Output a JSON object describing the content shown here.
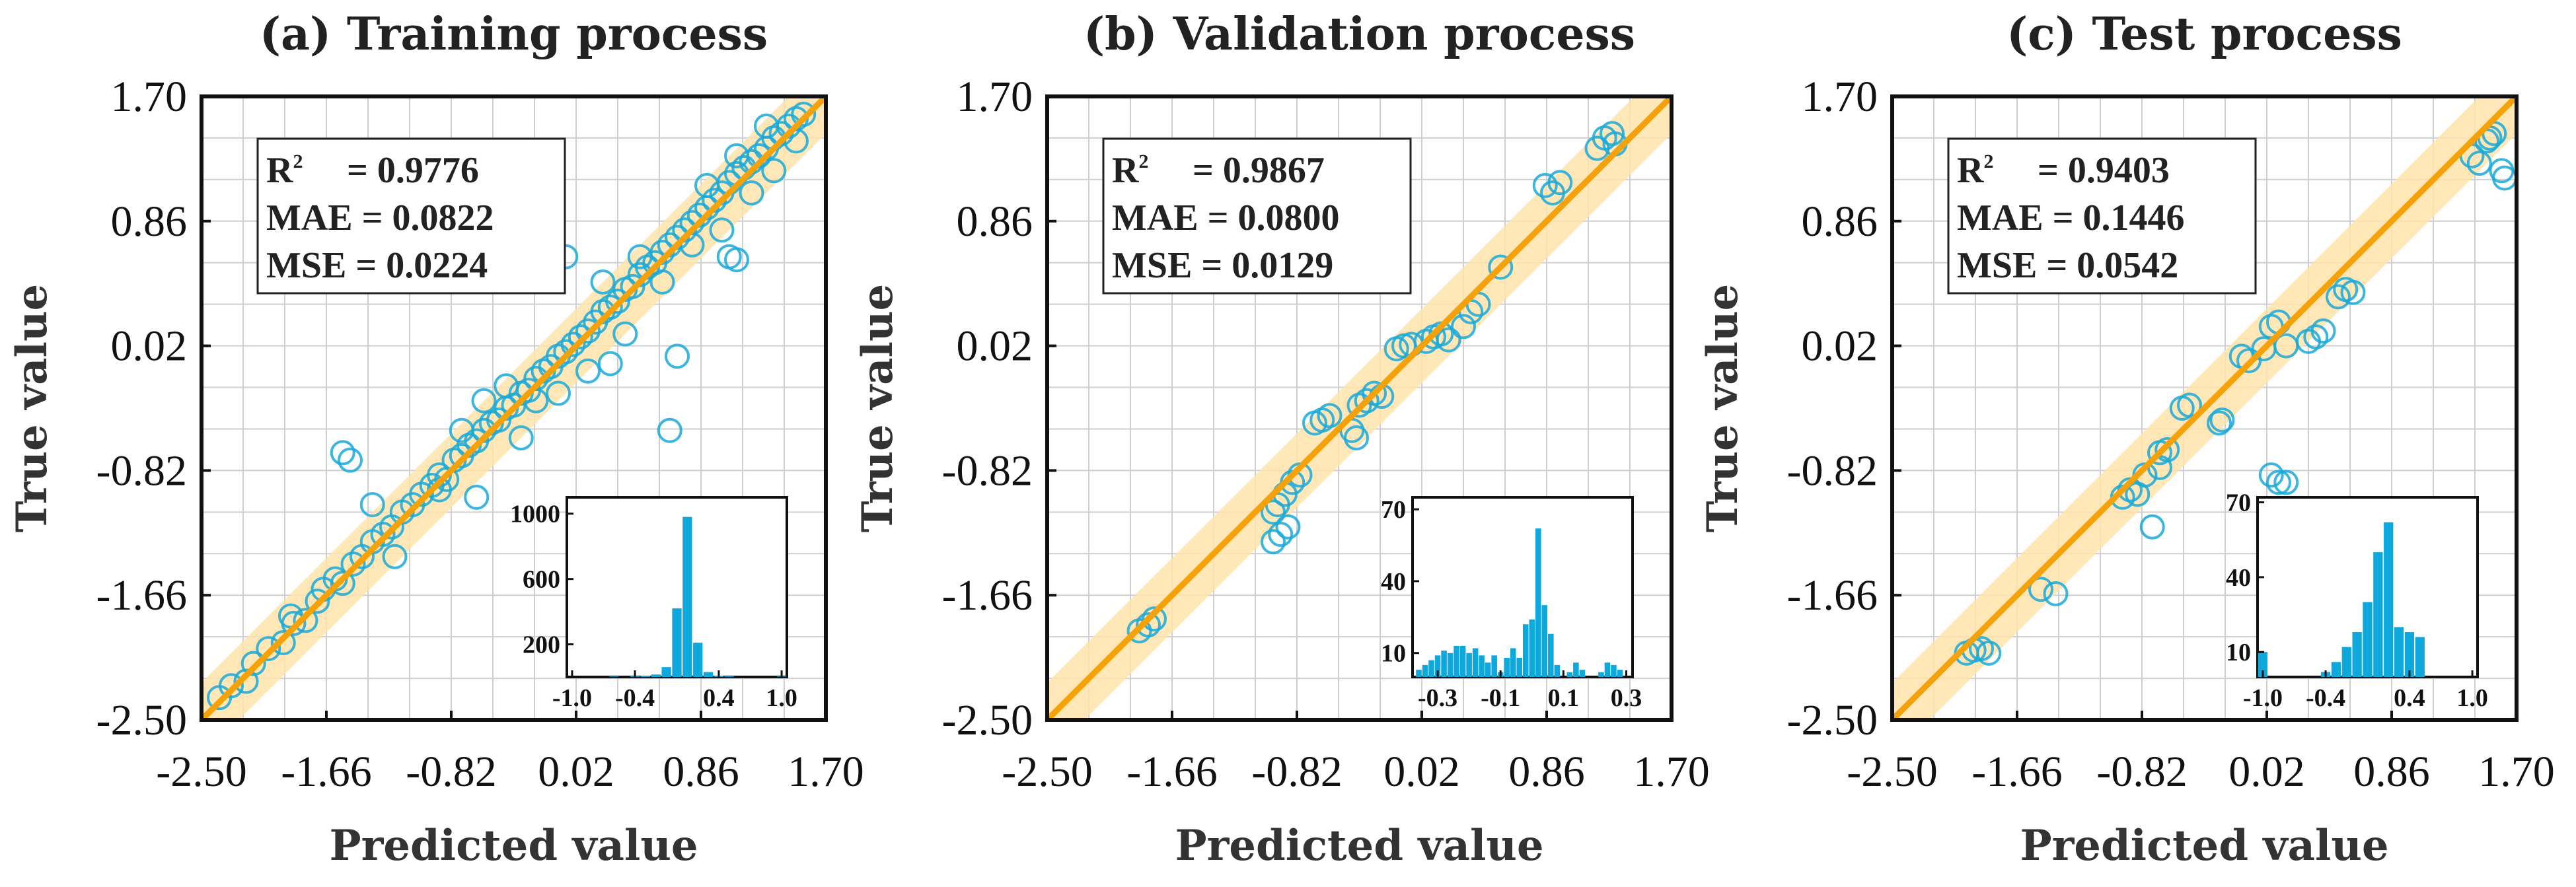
{
  "figure": {
    "accent": "#f5a10a",
    "band": "#ffe3ab",
    "point_color": "#1aa9d8",
    "bar_color": "#0fa8dc"
  },
  "chart_data": [
    {
      "type": "scatter",
      "title": "(a) Training process",
      "xlabel": "Predicted value",
      "ylabel": "True value",
      "xlim": [
        -2.5,
        1.7
      ],
      "ylim": [
        -2.5,
        1.7
      ],
      "ticks": [
        -2.5,
        -1.66,
        -0.82,
        0.02,
        0.86,
        1.7
      ],
      "tick_labels": [
        "-2.50",
        "-1.66",
        "-0.82",
        "0.02",
        "0.86",
        "1.70"
      ],
      "fit_line": [
        [
          -2.5,
          -2.5
        ],
        [
          1.7,
          1.7
        ]
      ],
      "band_halfwidth": 0.25,
      "stats": {
        "r2_label": "R",
        "r2_sup": "2",
        "r2_value": "= 0.9776",
        "mae": "MAE = 0.0822",
        "mse": "MSE = 0.0224"
      },
      "points": [
        [
          -2.38,
          -2.35
        ],
        [
          -2.3,
          -2.27
        ],
        [
          -2.2,
          -2.24
        ],
        [
          -2.15,
          -2.12
        ],
        [
          -2.05,
          -2.02
        ],
        [
          -1.95,
          -1.98
        ],
        [
          -1.88,
          -1.85
        ],
        [
          -1.8,
          -1.83
        ],
        [
          -1.72,
          -1.7
        ],
        [
          -1.68,
          -1.62
        ],
        [
          -1.6,
          -1.55
        ],
        [
          -1.55,
          -1.58
        ],
        [
          -1.48,
          -1.45
        ],
        [
          -1.42,
          -1.4
        ],
        [
          -1.35,
          -1.3
        ],
        [
          -1.28,
          -1.25
        ],
        [
          -1.22,
          -1.2
        ],
        [
          -1.15,
          -1.1
        ],
        [
          -1.08,
          -1.05
        ],
        [
          -1.02,
          -0.98
        ],
        [
          -0.95,
          -0.92
        ],
        [
          -0.9,
          -0.85
        ],
        [
          -0.85,
          -0.88
        ],
        [
          -0.8,
          -0.75
        ],
        [
          -0.75,
          -0.72
        ],
        [
          -0.7,
          -0.65
        ],
        [
          -0.65,
          -0.62
        ],
        [
          -0.6,
          -0.55
        ],
        [
          -0.55,
          -0.5
        ],
        [
          -0.5,
          -0.48
        ],
        [
          -0.45,
          -0.4
        ],
        [
          -0.4,
          -0.38
        ],
        [
          -0.35,
          -0.3
        ],
        [
          -0.3,
          -0.28
        ],
        [
          -0.25,
          -0.2
        ],
        [
          -0.2,
          -0.15
        ],
        [
          -0.15,
          -0.12
        ],
        [
          -0.1,
          -0.05
        ],
        [
          -0.05,
          -0.02
        ],
        [
          0.0,
          0.03
        ],
        [
          0.05,
          0.08
        ],
        [
          0.1,
          0.12
        ],
        [
          0.15,
          0.18
        ],
        [
          0.2,
          0.25
        ],
        [
          0.25,
          0.28
        ],
        [
          0.3,
          0.32
        ],
        [
          0.35,
          0.4
        ],
        [
          0.4,
          0.42
        ],
        [
          0.45,
          0.5
        ],
        [
          0.5,
          0.55
        ],
        [
          0.55,
          0.58
        ],
        [
          0.6,
          0.65
        ],
        [
          0.65,
          0.7
        ],
        [
          0.7,
          0.75
        ],
        [
          0.75,
          0.8
        ],
        [
          0.8,
          0.85
        ],
        [
          0.85,
          0.9
        ],
        [
          0.9,
          0.95
        ],
        [
          0.95,
          1.0
        ],
        [
          1.0,
          1.05
        ],
        [
          1.05,
          1.12
        ],
        [
          1.1,
          1.18
        ],
        [
          1.15,
          1.22
        ],
        [
          1.2,
          1.26
        ],
        [
          1.25,
          1.3
        ],
        [
          1.3,
          1.35
        ],
        [
          1.35,
          1.42
        ],
        [
          1.4,
          1.45
        ],
        [
          1.45,
          1.5
        ],
        [
          1.5,
          1.55
        ],
        [
          1.55,
          1.58
        ],
        [
          -1.9,
          -1.8
        ],
        [
          -1.2,
          -1.4
        ],
        [
          -0.75,
          -0.55
        ],
        [
          -0.6,
          -0.35
        ],
        [
          -0.45,
          -0.25
        ],
        [
          -0.25,
          -0.35
        ],
        [
          0.1,
          -0.15
        ],
        [
          0.2,
          0.45
        ],
        [
          0.35,
          0.1
        ],
        [
          0.45,
          0.62
        ],
        [
          0.6,
          0.45
        ],
        [
          0.7,
          -0.05
        ],
        [
          0.8,
          0.7
        ],
        [
          0.9,
          1.1
        ],
        [
          1.0,
          0.8
        ],
        [
          1.1,
          1.3
        ],
        [
          1.2,
          1.05
        ],
        [
          1.3,
          1.5
        ],
        [
          1.35,
          1.2
        ],
        [
          1.5,
          1.4
        ],
        [
          -1.55,
          -0.7
        ],
        [
          -1.5,
          -0.75
        ],
        [
          -0.05,
          0.62
        ],
        [
          0.65,
          -0.55
        ],
        [
          1.05,
          0.62
        ],
        [
          1.1,
          0.6
        ],
        [
          -1.35,
          -1.05
        ],
        [
          -0.65,
          -1.0
        ],
        [
          0.25,
          -0.1
        ],
        [
          -0.9,
          -0.95
        ],
        [
          -0.1,
          -0.3
        ],
        [
          -0.35,
          -0.6
        ]
      ],
      "inset": {
        "type": "bar",
        "bins": [
          -1.0,
          -0.9,
          -0.8,
          -0.7,
          -0.6,
          -0.5,
          -0.4,
          -0.3,
          -0.2,
          -0.1,
          0.0,
          0.1,
          0.2,
          0.3,
          0.4,
          0.5,
          0.6,
          0.7,
          0.8,
          0.9,
          1.0
        ],
        "values": [
          0,
          0,
          0,
          0,
          3,
          0,
          5,
          8,
          15,
          60,
          420,
          980,
          210,
          30,
          8,
          4,
          0,
          0,
          0,
          0,
          3
        ],
        "ylim": [
          0,
          1100
        ],
        "ytick_labels": [
          "200",
          "600",
          "1000"
        ],
        "yticks": [
          200,
          600,
          1000
        ],
        "xticks": [
          -1.0,
          -0.4,
          0.4,
          1.0
        ],
        "xtick_labels": [
          "-1.0",
          "-0.4",
          "0.4",
          "1.0"
        ],
        "xlim": [
          -1.05,
          1.05
        ]
      }
    },
    {
      "type": "scatter",
      "title": "(b) Validation process",
      "xlabel": "Predicted value",
      "ylabel": "True value",
      "xlim": [
        -2.5,
        1.7
      ],
      "ylim": [
        -2.5,
        1.7
      ],
      "ticks": [
        -2.5,
        -1.66,
        -0.82,
        0.02,
        0.86,
        1.7
      ],
      "tick_labels": [
        "-2.50",
        "-1.66",
        "-0.82",
        "0.02",
        "0.86",
        "1.70"
      ],
      "fit_line": [
        [
          -2.5,
          -2.5
        ],
        [
          1.7,
          1.7
        ]
      ],
      "band_halfwidth": 0.25,
      "stats": {
        "r2_label": "R",
        "r2_sup": "2",
        "r2_value": "= 0.9867",
        "mae": "MAE = 0.0800",
        "mse": "MSE = 0.0129"
      },
      "points": [
        [
          -1.88,
          -1.9
        ],
        [
          -1.82,
          -1.86
        ],
        [
          -1.78,
          -1.82
        ],
        [
          -0.98,
          -1.1
        ],
        [
          -0.95,
          -1.05
        ],
        [
          -0.9,
          -0.98
        ],
        [
          -0.85,
          -0.9
        ],
        [
          -0.8,
          -0.85
        ],
        [
          -0.98,
          -1.3
        ],
        [
          -0.93,
          -1.25
        ],
        [
          -0.88,
          -1.2
        ],
        [
          -0.7,
          -0.5
        ],
        [
          -0.65,
          -0.48
        ],
        [
          -0.6,
          -0.45
        ],
        [
          -0.45,
          -0.55
        ],
        [
          -0.42,
          -0.6
        ],
        [
          -0.4,
          -0.38
        ],
        [
          -0.35,
          -0.35
        ],
        [
          -0.3,
          -0.3
        ],
        [
          -0.25,
          -0.32
        ],
        [
          -0.15,
          0.0
        ],
        [
          -0.1,
          0.02
        ],
        [
          -0.05,
          0.03
        ],
        [
          0.05,
          0.05
        ],
        [
          0.1,
          0.08
        ],
        [
          0.15,
          0.1
        ],
        [
          0.2,
          0.06
        ],
        [
          0.3,
          0.15
        ],
        [
          0.35,
          0.25
        ],
        [
          0.4,
          0.3
        ],
        [
          0.55,
          0.55
        ],
        [
          0.85,
          1.1
        ],
        [
          0.9,
          1.05
        ],
        [
          0.95,
          1.12
        ],
        [
          1.2,
          1.35
        ],
        [
          1.25,
          1.42
        ],
        [
          1.3,
          1.45
        ],
        [
          1.32,
          1.38
        ]
      ],
      "inset": {
        "type": "bar",
        "bins": [
          -0.36,
          -0.34,
          -0.32,
          -0.3,
          -0.28,
          -0.26,
          -0.24,
          -0.22,
          -0.2,
          -0.18,
          -0.16,
          -0.14,
          -0.12,
          -0.1,
          -0.08,
          -0.06,
          -0.04,
          -0.02,
          0.0,
          0.02,
          0.04,
          0.06,
          0.08,
          0.1,
          0.12,
          0.14,
          0.16,
          0.18,
          0.2,
          0.22,
          0.24,
          0.26,
          0.28
        ],
        "values": [
          3,
          5,
          7,
          9,
          11,
          10,
          13,
          13,
          10,
          12,
          9,
          6,
          9,
          2,
          8,
          12,
          8,
          22,
          24,
          62,
          30,
          18,
          5,
          0,
          2,
          6,
          3,
          0,
          0,
          2,
          6,
          5,
          3
        ],
        "ylim": [
          0,
          75
        ],
        "ytick_labels": [
          "10",
          "40",
          "70"
        ],
        "yticks": [
          10,
          40,
          70
        ],
        "xticks": [
          -0.3,
          -0.1,
          0.1,
          0.3
        ],
        "xtick_labels": [
          "-0.3",
          "-0.1",
          "0.1",
          "0.3"
        ],
        "xlim": [
          -0.38,
          0.32
        ]
      }
    },
    {
      "type": "scatter",
      "title": "(c) Test process",
      "xlabel": "Predicted value",
      "ylabel": "True value",
      "xlim": [
        -2.5,
        1.7
      ],
      "ylim": [
        -2.5,
        1.7
      ],
      "ticks": [
        -2.5,
        -1.66,
        -0.82,
        0.02,
        0.86,
        1.7
      ],
      "tick_labels": [
        "-2.50",
        "-1.66",
        "-0.82",
        "0.02",
        "0.86",
        "1.70"
      ],
      "fit_line": [
        [
          -2.5,
          -2.5
        ],
        [
          1.7,
          1.7
        ]
      ],
      "band_halfwidth": 0.25,
      "stats": {
        "r2_label": "R",
        "r2_sup": "2",
        "r2_value": "= 0.9403",
        "mae": "MAE = 0.1446",
        "mse": "MSE = 0.0542"
      },
      "points": [
        [
          -2.0,
          -2.05
        ],
        [
          -1.95,
          -2.03
        ],
        [
          -1.9,
          -2.02
        ],
        [
          -1.85,
          -2.05
        ],
        [
          -1.5,
          -1.62
        ],
        [
          -1.4,
          -1.65
        ],
        [
          -0.95,
          -1.0
        ],
        [
          -0.9,
          -0.95
        ],
        [
          -0.85,
          -0.98
        ],
        [
          -0.8,
          -0.85
        ],
        [
          -0.75,
          -1.2
        ],
        [
          -0.7,
          -0.7
        ],
        [
          -0.65,
          -0.68
        ],
        [
          -0.7,
          -0.8
        ],
        [
          -0.55,
          -0.4
        ],
        [
          -0.5,
          -0.38
        ],
        [
          -0.3,
          -0.5
        ],
        [
          -0.28,
          -0.48
        ],
        [
          0.05,
          -0.85
        ],
        [
          0.1,
          -0.9
        ],
        [
          0.15,
          -0.9
        ],
        [
          -0.15,
          -0.05
        ],
        [
          -0.1,
          -0.08
        ],
        [
          0.0,
          0.0
        ],
        [
          0.05,
          0.15
        ],
        [
          0.1,
          0.18
        ],
        [
          0.15,
          0.02
        ],
        [
          0.3,
          0.05
        ],
        [
          0.35,
          0.08
        ],
        [
          0.4,
          0.12
        ],
        [
          0.5,
          0.35
        ],
        [
          0.55,
          0.4
        ],
        [
          0.6,
          0.38
        ],
        [
          1.4,
          1.3
        ],
        [
          1.45,
          1.25
        ],
        [
          1.5,
          1.4
        ],
        [
          1.52,
          1.42
        ],
        [
          1.55,
          1.45
        ],
        [
          1.6,
          1.2
        ],
        [
          1.62,
          1.15
        ]
      ],
      "inset": {
        "type": "bar",
        "bins": [
          -1.0,
          -0.9,
          -0.8,
          -0.7,
          -0.6,
          -0.5,
          -0.4,
          -0.3,
          -0.2,
          -0.1,
          0.0,
          0.1,
          0.2,
          0.3,
          0.4,
          0.5,
          0.6,
          0.7,
          0.8,
          0.9,
          1.0
        ],
        "values": [
          10,
          0,
          0,
          0,
          0,
          0,
          2,
          6,
          12,
          18,
          30,
          50,
          62,
          20,
          18,
          16,
          0,
          0,
          0,
          0,
          0
        ],
        "ylim": [
          0,
          72
        ],
        "ytick_labels": [
          "10",
          "40",
          "70"
        ],
        "yticks": [
          10,
          40,
          70
        ],
        "xticks": [
          -1.0,
          -0.4,
          0.4,
          1.0
        ],
        "xtick_labels": [
          "-1.0",
          "-0.4",
          "0.4",
          "1.0"
        ],
        "xlim": [
          -1.05,
          1.05
        ]
      }
    }
  ]
}
